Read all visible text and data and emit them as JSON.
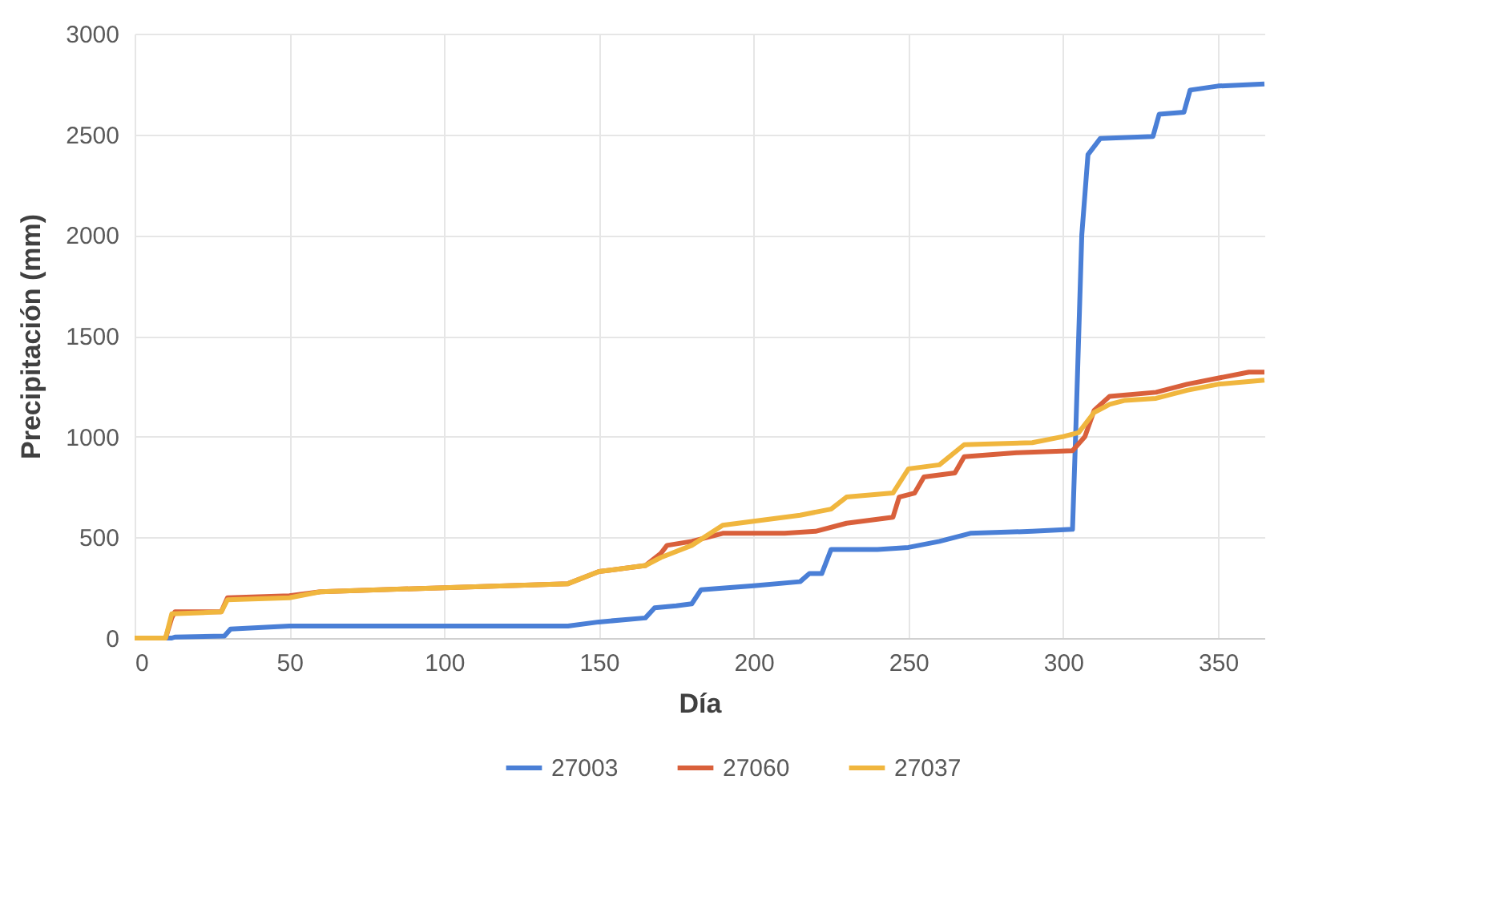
{
  "chart_data": {
    "type": "line",
    "xlabel": "Día",
    "ylabel": "Precipitación (mm)",
    "xlim": [
      0,
      365
    ],
    "xticks": [
      0,
      50,
      100,
      150,
      200,
      250,
      300,
      350
    ],
    "ylim": [
      0,
      3000
    ],
    "yticks": [
      0,
      500,
      1000,
      1500,
      2000,
      2500,
      3000
    ],
    "grid": true,
    "legend": "bottom",
    "line_style": "solid",
    "marker": "none",
    "series": [
      {
        "name": "27003",
        "color": "#4a7fd6",
        "x": [
          0,
          12,
          13,
          29,
          31,
          50,
          140,
          150,
          165,
          168,
          175,
          180,
          183,
          200,
          215,
          218,
          222,
          225,
          240,
          250,
          260,
          270,
          290,
          303,
          304,
          306,
          308,
          312,
          329,
          331,
          339,
          341,
          350,
          365
        ],
        "values": [
          0,
          0,
          5,
          10,
          45,
          60,
          60,
          80,
          100,
          150,
          160,
          170,
          240,
          260,
          280,
          320,
          320,
          440,
          440,
          450,
          480,
          520,
          530,
          540,
          1000,
          2000,
          2400,
          2480,
          2490,
          2600,
          2610,
          2720,
          2740,
          2750
        ]
      },
      {
        "name": "27060",
        "color": "#d9603b",
        "x": [
          0,
          10,
          12,
          13,
          28,
          30,
          50,
          60,
          100,
          140,
          150,
          165,
          170,
          172,
          180,
          190,
          210,
          220,
          230,
          245,
          247,
          252,
          255,
          265,
          268,
          285,
          303,
          307,
          310,
          315,
          330,
          340,
          350,
          360,
          365
        ],
        "values": [
          0,
          0,
          100,
          130,
          130,
          200,
          210,
          230,
          250,
          270,
          330,
          360,
          420,
          460,
          480,
          520,
          520,
          530,
          570,
          600,
          700,
          720,
          800,
          820,
          900,
          920,
          930,
          1000,
          1130,
          1200,
          1220,
          1260,
          1290,
          1320,
          1320
        ]
      },
      {
        "name": "27037",
        "color": "#f0b63e",
        "x": [
          0,
          10,
          12,
          28,
          30,
          50,
          60,
          100,
          140,
          150,
          165,
          170,
          180,
          190,
          200,
          215,
          225,
          230,
          245,
          250,
          260,
          268,
          290,
          300,
          305,
          310,
          315,
          320,
          330,
          340,
          350,
          365
        ],
        "values": [
          0,
          0,
          120,
          130,
          190,
          200,
          230,
          250,
          270,
          330,
          360,
          400,
          460,
          560,
          580,
          610,
          640,
          700,
          720,
          840,
          860,
          960,
          970,
          1000,
          1020,
          1120,
          1160,
          1180,
          1190,
          1230,
          1260,
          1280
        ]
      }
    ]
  }
}
